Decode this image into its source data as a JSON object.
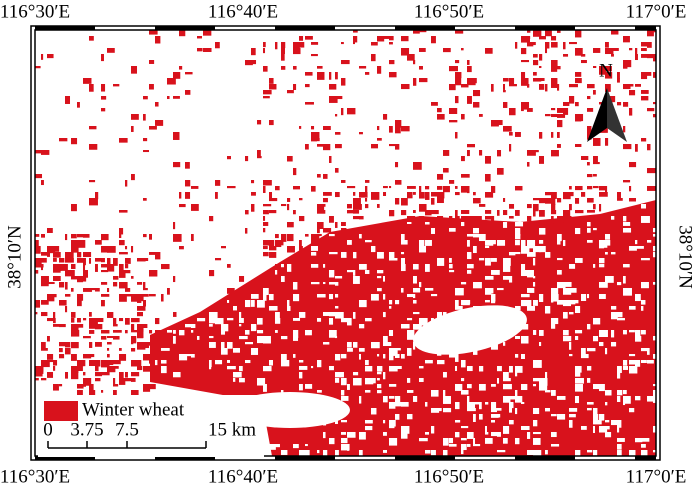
{
  "map": {
    "top_labels": [
      "116°30′E",
      "116°40′E",
      "116°50′E",
      "117°0′E"
    ],
    "bottom_labels": [
      "116°30′E",
      "116°40′E",
      "116°50′E",
      "117°0′E"
    ],
    "left_labels": [
      "38°10′N"
    ],
    "right_labels": [
      "38°10′N"
    ],
    "north_arrow": "N",
    "legend": {
      "label": "Winter wheat"
    },
    "scale_bar": {
      "labels": [
        "0",
        "3.75",
        "7.5",
        "15 km"
      ]
    }
  }
}
